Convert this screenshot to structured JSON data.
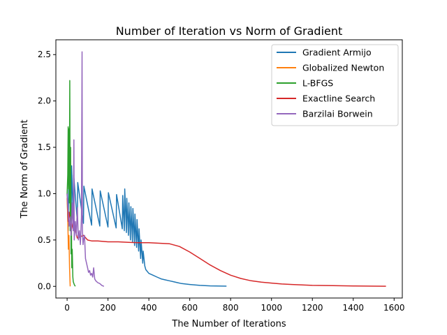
{
  "chart_data": {
    "type": "line",
    "title": "Number of Iteration vs Norm of Gradient",
    "xlabel": "The Number of Iterations",
    "ylabel": "The Norm of Gradient",
    "xlim": [
      -55,
      1640
    ],
    "ylim": [
      -0.126,
      2.66
    ],
    "xticks": [
      0,
      200,
      400,
      600,
      800,
      1000,
      1200,
      1400,
      1600
    ],
    "yticks": [
      0.0,
      0.5,
      1.0,
      1.5,
      2.0,
      2.5
    ],
    "xtick_labels": [
      "0",
      "200",
      "400",
      "600",
      "800",
      "1000",
      "1200",
      "1400",
      "1600"
    ],
    "ytick_labels": [
      "0.0",
      "0.5",
      "1.0",
      "1.5",
      "2.0",
      "2.5"
    ],
    "grid": false,
    "legend_position": "top-right",
    "series": [
      {
        "name": "Gradient Armijo",
        "color": "#1f77b4",
        "x": [
          0,
          5,
          10,
          20,
          22,
          30,
          32,
          50,
          52,
          80,
          82,
          120,
          122,
          160,
          162,
          200,
          202,
          240,
          242,
          270,
          272,
          280,
          282,
          290,
          292,
          300,
          302,
          310,
          312,
          320,
          322,
          330,
          332,
          340,
          342,
          350,
          352,
          360,
          362,
          370,
          372,
          380,
          385,
          400,
          420,
          440,
          460,
          480,
          500,
          520,
          540,
          560,
          600,
          650,
          700,
          780
        ],
        "y": [
          1.0,
          0.6,
          1.5,
          0.7,
          1.3,
          0.72,
          1.2,
          0.7,
          1.12,
          0.68,
          1.08,
          0.66,
          1.05,
          0.65,
          1.03,
          0.64,
          1.01,
          0.63,
          0.99,
          0.62,
          0.98,
          0.6,
          1.05,
          0.58,
          0.95,
          0.55,
          0.9,
          0.5,
          0.86,
          0.48,
          0.84,
          0.44,
          0.78,
          0.42,
          0.72,
          0.38,
          0.62,
          0.3,
          0.5,
          0.25,
          0.38,
          0.22,
          0.18,
          0.14,
          0.12,
          0.1,
          0.08,
          0.07,
          0.06,
          0.05,
          0.04,
          0.03,
          0.02,
          0.01,
          0.005,
          0.002
        ]
      },
      {
        "name": "Globalized Newton",
        "color": "#ff7f0e",
        "x": [
          0,
          3,
          6,
          9,
          12,
          15
        ],
        "y": [
          0.95,
          0.75,
          0.4,
          0.55,
          0.2,
          0.0
        ]
      },
      {
        "name": "L-BFGS",
        "color": "#2ca02c",
        "x": [
          0,
          3,
          5,
          7,
          9,
          11,
          13,
          15,
          17,
          19,
          21,
          23,
          25,
          28,
          30,
          35,
          40
        ],
        "y": [
          1.0,
          1.2,
          1.72,
          1.05,
          1.7,
          0.9,
          2.22,
          0.6,
          1.5,
          0.35,
          0.7,
          0.2,
          0.4,
          0.1,
          0.05,
          0.02,
          0.0
        ]
      },
      {
        "name": "Exactline Search",
        "color": "#d62728",
        "x": [
          0,
          5,
          10,
          20,
          30,
          50,
          80,
          100,
          120,
          150,
          200,
          250,
          300,
          350,
          400,
          450,
          500,
          550,
          600,
          650,
          700,
          750,
          800,
          850,
          900,
          950,
          1000,
          1050,
          1100,
          1150,
          1200,
          1300,
          1400,
          1500,
          1560
        ],
        "y": [
          1.0,
          0.7,
          0.8,
          0.6,
          0.7,
          0.52,
          0.55,
          0.5,
          0.49,
          0.49,
          0.48,
          0.48,
          0.475,
          0.47,
          0.47,
          0.465,
          0.46,
          0.43,
          0.37,
          0.3,
          0.23,
          0.17,
          0.12,
          0.085,
          0.06,
          0.045,
          0.035,
          0.025,
          0.02,
          0.015,
          0.01,
          0.007,
          0.004,
          0.002,
          0.001
        ]
      },
      {
        "name": "Barzilai Borwein",
        "color": "#9467bd",
        "x": [
          0,
          5,
          10,
          15,
          20,
          25,
          30,
          33,
          35,
          40,
          45,
          50,
          55,
          60,
          65,
          70,
          73,
          75,
          78,
          80,
          85,
          90,
          95,
          100,
          105,
          110,
          115,
          120,
          125,
          130,
          135,
          140,
          150,
          160,
          170,
          180
        ],
        "y": [
          1.0,
          0.8,
          0.65,
          0.75,
          0.55,
          0.9,
          0.6,
          1.58,
          0.5,
          0.7,
          0.55,
          0.85,
          0.5,
          0.6,
          0.45,
          0.75,
          2.53,
          0.6,
          0.45,
          0.5,
          0.55,
          0.3,
          0.25,
          0.2,
          0.15,
          0.17,
          0.12,
          0.14,
          0.1,
          0.2,
          0.08,
          0.06,
          0.04,
          0.03,
          0.01,
          0.0
        ]
      }
    ]
  }
}
